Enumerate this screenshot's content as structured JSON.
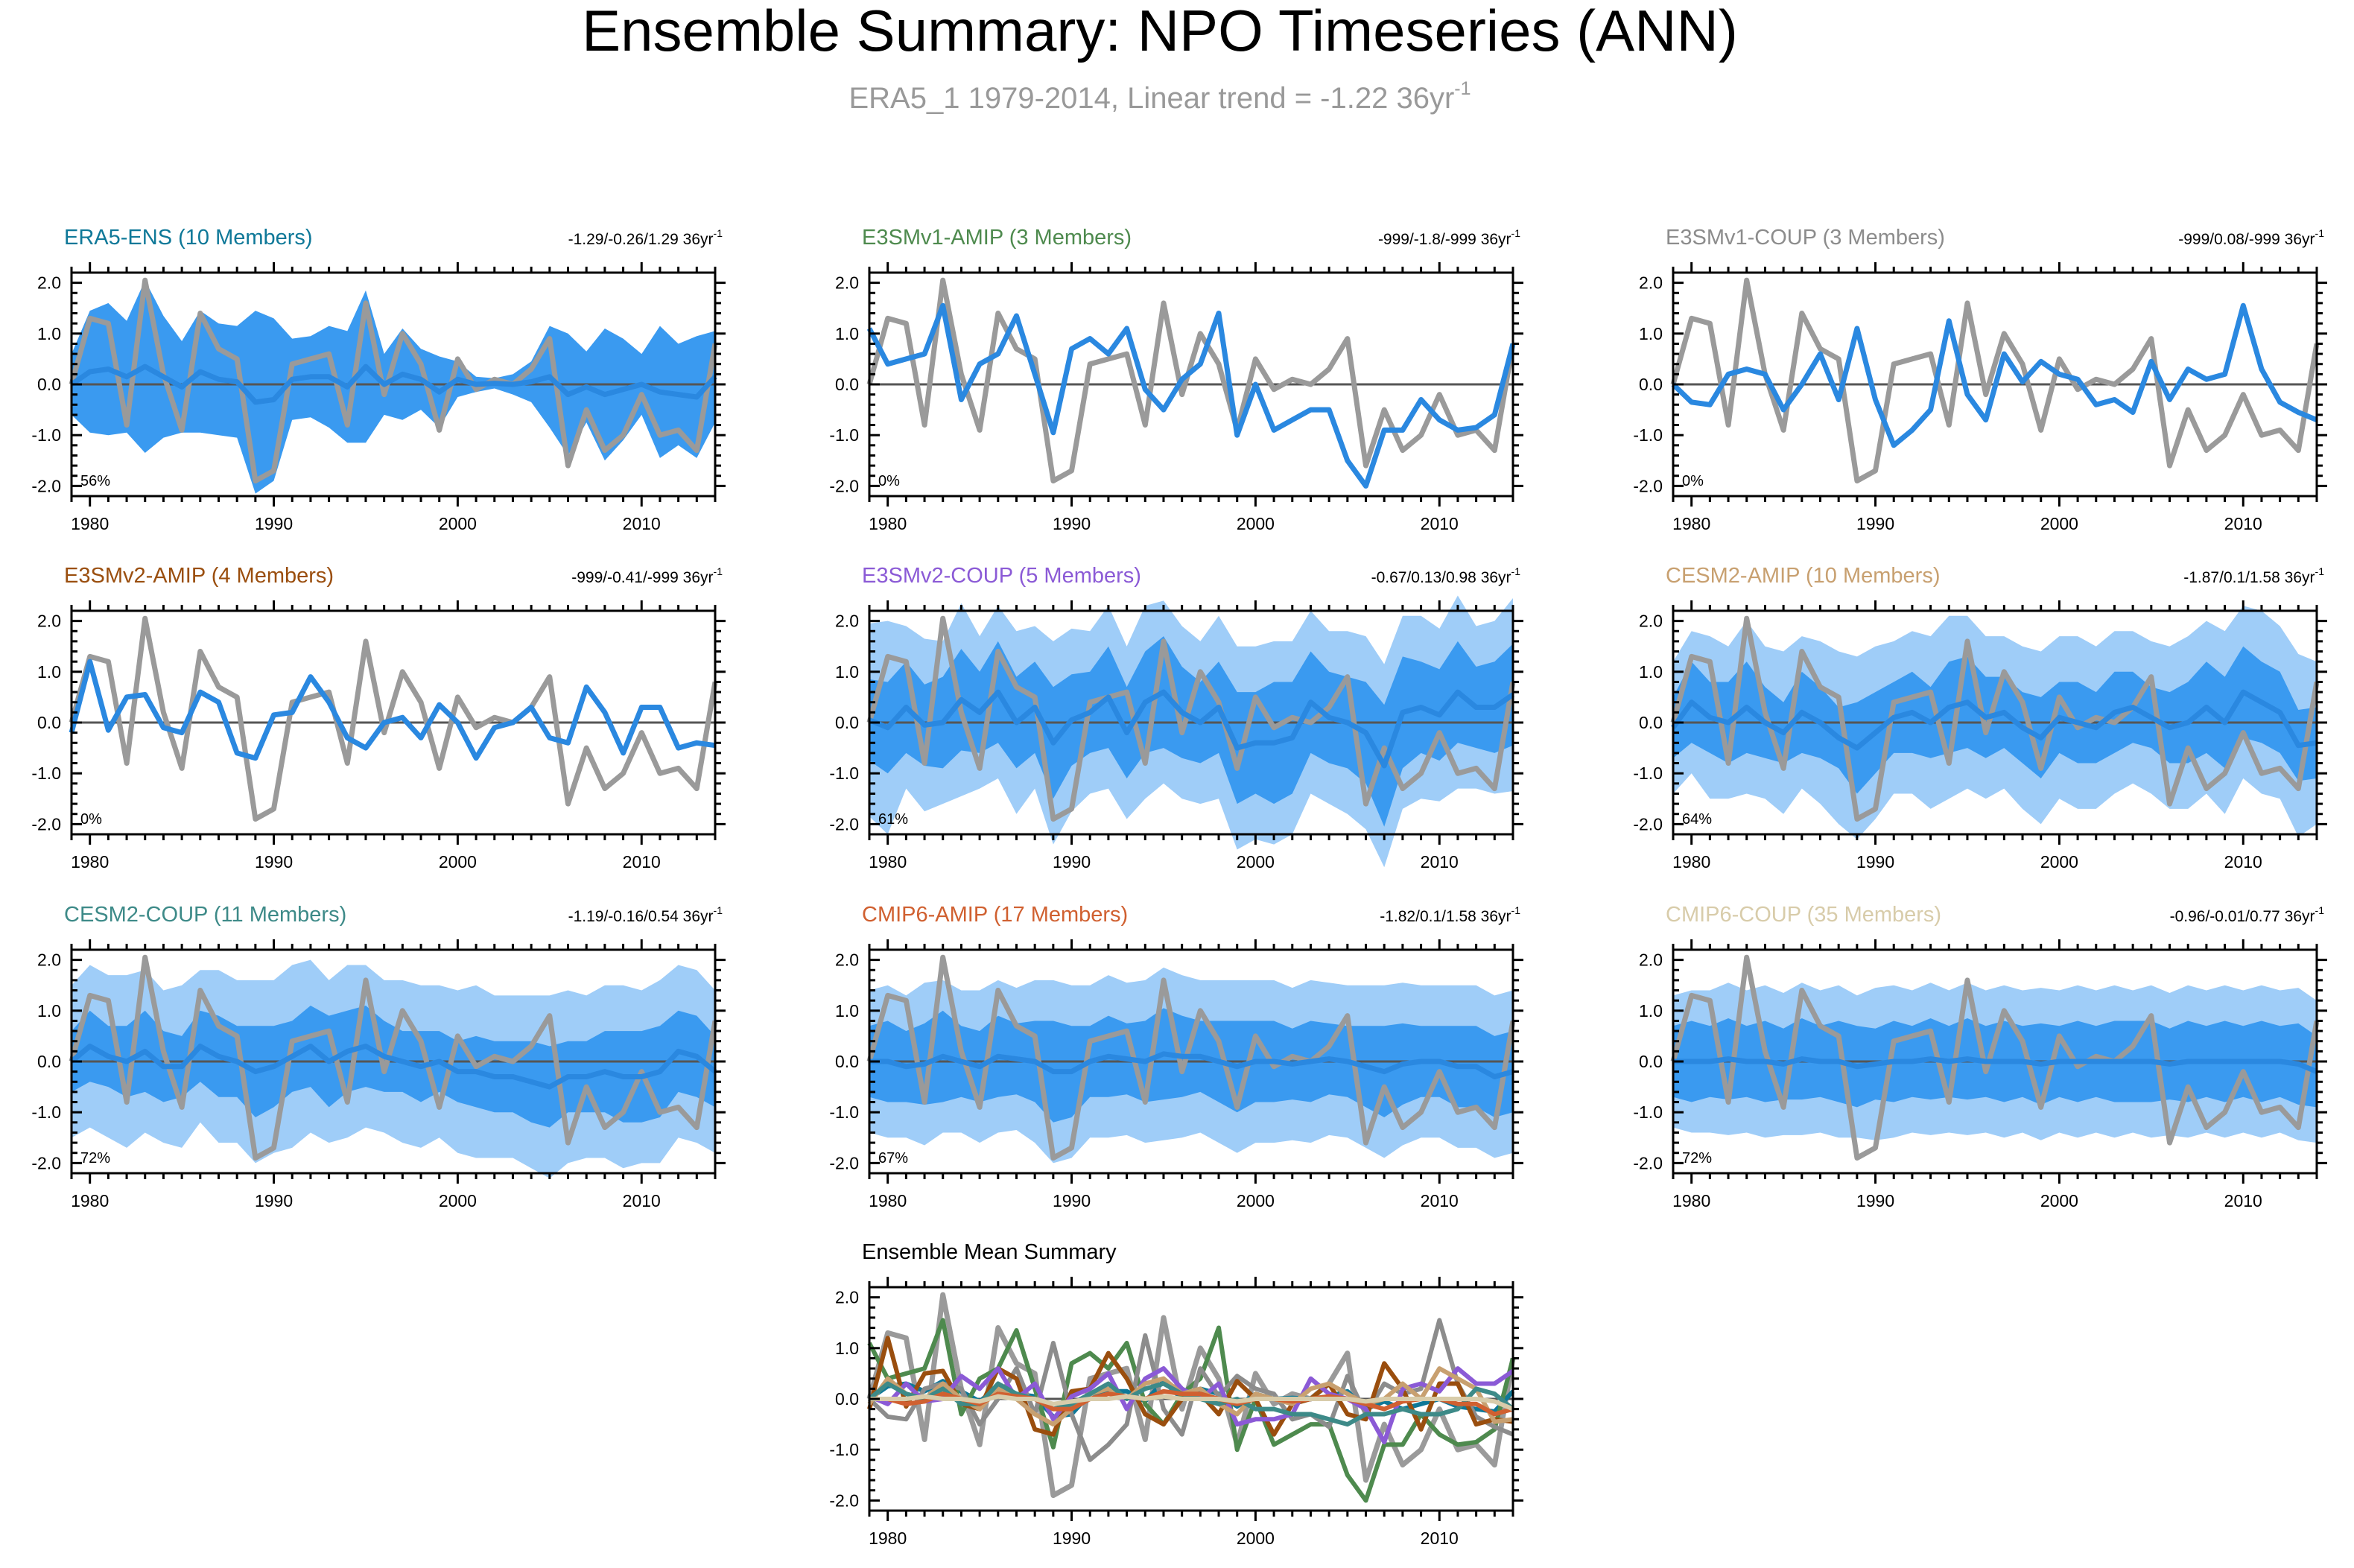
{
  "figure": {
    "title": "Ensemble Summary: NPO Timeseries (ANN)",
    "subtitle_main": "ERA5_1 1979-2014, Linear trend = -1.22 36yr",
    "subtitle_sup": "-1"
  },
  "colors": {
    "obs": "#9a9a9a",
    "mean": "#2a88e0",
    "band_inner": "#3a9af0",
    "band_outer": "#9fcdf8",
    "zero": "#555555"
  },
  "chart_data": {
    "type": "line",
    "x_start": 1979,
    "x_end": 2014,
    "xticks": [
      1980,
      1990,
      2000,
      2010
    ],
    "ylim": [
      -2.2,
      2.2
    ],
    "yticks": [
      "2.0",
      "1.0",
      "0.0",
      "-1.0",
      "-2.0"
    ],
    "ytick_values": [
      2.0,
      1.0,
      0.0,
      -1.0,
      -2.0
    ],
    "observed": {
      "name": "ERA5_1",
      "values": [
        0.0,
        1.3,
        1.2,
        -0.8,
        2.05,
        0.2,
        -0.9,
        1.4,
        0.7,
        0.5,
        -1.9,
        -1.7,
        0.4,
        0.5,
        0.6,
        -0.8,
        1.6,
        -0.2,
        1.0,
        0.4,
        -0.9,
        0.5,
        -0.1,
        0.1,
        0.0,
        0.3,
        0.9,
        -1.6,
        -0.5,
        -1.3,
        -1.0,
        -0.2,
        -1.0,
        -0.9,
        -1.3,
        0.8
      ]
    },
    "panels": [
      {
        "title": "ERA5-ENS (10 Members)",
        "color": "#0e7898",
        "stats": "-1.29/-0.26/1.29 36yr",
        "pct": "56%",
        "band": "single",
        "mean": [
          0.0,
          0.25,
          0.3,
          0.15,
          0.35,
          0.15,
          -0.05,
          0.25,
          0.1,
          0.05,
          -0.35,
          -0.3,
          0.1,
          0.15,
          0.15,
          -0.05,
          0.35,
          0.0,
          0.2,
          0.1,
          -0.15,
          0.1,
          0.0,
          0.02,
          0.0,
          0.05,
          0.15,
          -0.2,
          -0.05,
          -0.2,
          -0.1,
          0.0,
          -0.15,
          -0.2,
          -0.25,
          0.15
        ],
        "spread": [
          0.6,
          1.2,
          1.3,
          1.1,
          1.7,
          1.2,
          0.9,
          1.2,
          1.1,
          1.1,
          1.8,
          1.6,
          0.8,
          0.8,
          1.0,
          1.1,
          1.5,
          0.6,
          0.9,
          0.6,
          0.7,
          0.35,
          0.15,
          0.1,
          0.2,
          0.4,
          1.0,
          1.2,
          0.7,
          1.3,
          1.0,
          0.6,
          1.3,
          1.0,
          1.2,
          0.9
        ],
        "spread_outer": null
      },
      {
        "title": "E3SMv1-AMIP (3 Members)",
        "color": "#4e8a4e",
        "stats": "-999/-1.8/-999 36yr",
        "pct": "0%",
        "band": "none",
        "mean": [
          1.1,
          0.4,
          0.5,
          0.6,
          1.55,
          -0.3,
          0.4,
          0.6,
          1.35,
          0.2,
          -0.95,
          0.7,
          0.9,
          0.6,
          1.1,
          -0.1,
          -0.5,
          0.1,
          0.4,
          1.4,
          -1.0,
          0.0,
          -0.9,
          -0.7,
          -0.5,
          -0.5,
          -1.5,
          -2.0,
          -0.9,
          -0.9,
          -0.3,
          -0.7,
          -0.9,
          -0.85,
          -0.6,
          0.8
        ],
        "spread": null,
        "spread_outer": null
      },
      {
        "title": "E3SMv1-COUP (3 Members)",
        "color": "#8c8c8c",
        "stats": "-999/0.08/-999 36yr",
        "pct": "0%",
        "band": "none",
        "mean": [
          0.0,
          -0.35,
          -0.4,
          0.2,
          0.3,
          0.2,
          -0.5,
          0.0,
          0.6,
          -0.3,
          1.1,
          -0.3,
          -1.2,
          -0.9,
          -0.5,
          1.25,
          -0.2,
          -0.7,
          0.6,
          0.05,
          0.45,
          0.2,
          0.1,
          -0.4,
          -0.3,
          -0.55,
          0.45,
          -0.3,
          0.3,
          0.1,
          0.2,
          1.55,
          0.3,
          -0.35,
          -0.55,
          -0.7
        ],
        "spread": null,
        "spread_outer": null
      },
      {
        "title": "E3SMv2-AMIP (4 Members)",
        "color": "#9a4e0e",
        "stats": "-999/-0.41/-999 36yr",
        "pct": "0%",
        "band": "none",
        "mean": [
          -0.2,
          1.2,
          -0.15,
          0.5,
          0.55,
          -0.1,
          -0.2,
          0.6,
          0.4,
          -0.6,
          -0.7,
          0.15,
          0.2,
          0.9,
          0.4,
          -0.3,
          -0.5,
          0.0,
          0.1,
          -0.3,
          0.35,
          0.0,
          -0.7,
          -0.1,
          0.0,
          0.3,
          -0.3,
          -0.4,
          0.7,
          0.2,
          -0.6,
          0.3,
          0.3,
          -0.5,
          -0.4,
          -0.45
        ],
        "spread": null,
        "spread_outer": null
      },
      {
        "title": "E3SMv2-COUP (5 Members)",
        "color": "#8b5ad6",
        "stats": "-0.67/0.13/0.98 36yr",
        "pct": "61%",
        "band": "double",
        "mean": [
          0.05,
          -0.1,
          0.3,
          -0.05,
          0.0,
          0.45,
          0.2,
          0.6,
          0.0,
          0.3,
          -0.4,
          0.05,
          0.2,
          0.5,
          -0.2,
          0.4,
          0.6,
          0.2,
          0.0,
          0.3,
          -0.5,
          -0.4,
          -0.4,
          -0.3,
          0.4,
          0.1,
          0.0,
          -0.2,
          -0.85,
          0.2,
          0.3,
          0.15,
          0.6,
          0.3,
          0.3,
          0.55
        ],
        "spread": [
          0.8,
          0.9,
          0.9,
          0.8,
          0.9,
          1.0,
          0.8,
          1.0,
          0.9,
          0.9,
          1.1,
          0.9,
          0.8,
          1.0,
          0.9,
          1.0,
          1.1,
          0.9,
          0.8,
          0.9,
          1.1,
          1.0,
          1.2,
          1.1,
          1.0,
          0.9,
          0.9,
          1.0,
          1.2,
          1.1,
          0.9,
          0.9,
          1.0,
          0.8,
          0.9,
          1.0
        ],
        "spread_outer": [
          1.9,
          2.1,
          1.6,
          1.7,
          1.6,
          1.9,
          1.5,
          1.7,
          1.8,
          1.6,
          2.0,
          1.8,
          1.6,
          1.8,
          1.7,
          1.9,
          1.8,
          1.7,
          1.6,
          1.8,
          2.0,
          1.9,
          2.0,
          1.9,
          1.8,
          1.7,
          1.8,
          1.9,
          2.0,
          1.9,
          1.8,
          1.7,
          1.9,
          1.6,
          1.7,
          1.9
        ]
      },
      {
        "title": "CESM2-AMIP (10 Members)",
        "color": "#c8a070",
        "stats": "-1.87/0.1/1.58 36yr",
        "pct": "64%",
        "band": "double",
        "mean": [
          -0.1,
          0.4,
          0.1,
          0.0,
          0.3,
          0.0,
          -0.2,
          0.2,
          0.0,
          -0.3,
          -0.5,
          -0.2,
          0.1,
          0.2,
          0.0,
          0.3,
          0.4,
          0.1,
          0.2,
          -0.1,
          -0.3,
          0.1,
          0.0,
          -0.1,
          0.2,
          0.3,
          0.1,
          -0.1,
          0.0,
          0.3,
          0.0,
          0.6,
          0.4,
          0.2,
          -0.45,
          -0.4
        ],
        "spread": [
          0.6,
          0.8,
          0.7,
          0.8,
          0.9,
          0.7,
          0.6,
          0.8,
          0.7,
          0.6,
          0.9,
          0.8,
          0.7,
          0.8,
          0.7,
          0.9,
          0.9,
          0.8,
          0.7,
          0.7,
          0.8,
          0.7,
          0.8,
          0.7,
          0.8,
          0.7,
          0.6,
          0.7,
          0.8,
          0.9,
          0.9,
          0.9,
          0.8,
          0.8,
          0.7,
          0.7
        ],
        "spread_outer": [
          1.3,
          1.4,
          1.6,
          1.5,
          1.7,
          1.5,
          1.6,
          1.5,
          1.6,
          1.7,
          1.8,
          1.7,
          1.5,
          1.6,
          1.7,
          1.8,
          1.7,
          1.6,
          1.5,
          1.6,
          1.7,
          1.6,
          1.7,
          1.6,
          1.6,
          1.5,
          1.5,
          1.6,
          1.7,
          1.7,
          1.8,
          1.7,
          1.8,
          1.7,
          1.8,
          1.6
        ]
      },
      {
        "title": "CESM2-COUP (11 Members)",
        "color": "#3d8a88",
        "stats": "-1.19/-0.16/0.54 36yr",
        "pct": "72%",
        "band": "double",
        "mean": [
          0.0,
          0.3,
          0.1,
          0.0,
          0.2,
          -0.1,
          -0.1,
          0.3,
          0.1,
          0.0,
          -0.2,
          -0.1,
          0.1,
          0.3,
          0.0,
          0.2,
          0.3,
          0.1,
          0.0,
          -0.1,
          0.0,
          -0.2,
          -0.2,
          -0.3,
          -0.3,
          -0.4,
          -0.5,
          -0.3,
          -0.3,
          -0.2,
          -0.3,
          -0.3,
          -0.2,
          0.2,
          0.1,
          -0.2
        ],
        "spread": [
          0.6,
          0.7,
          0.6,
          0.7,
          0.8,
          0.7,
          0.6,
          0.7,
          0.8,
          0.7,
          0.9,
          0.8,
          0.7,
          0.8,
          0.9,
          0.8,
          0.8,
          0.7,
          0.6,
          0.7,
          0.6,
          0.6,
          0.7,
          0.7,
          0.7,
          0.8,
          0.8,
          0.7,
          0.7,
          0.8,
          0.9,
          0.9,
          0.9,
          0.8,
          0.8,
          0.7
        ],
        "spread_outer": [
          1.5,
          1.6,
          1.6,
          1.7,
          1.6,
          1.5,
          1.6,
          1.5,
          1.7,
          1.6,
          1.8,
          1.7,
          1.8,
          1.7,
          1.6,
          1.7,
          1.6,
          1.5,
          1.6,
          1.6,
          1.5,
          1.6,
          1.7,
          1.6,
          1.6,
          1.7,
          1.8,
          1.7,
          1.6,
          1.7,
          1.8,
          1.7,
          1.8,
          1.7,
          1.7,
          1.6
        ]
      },
      {
        "title": "CMIP6-AMIP (17 Members)",
        "color": "#d06030",
        "stats": "-1.82/0.1/1.58 36yr",
        "pct": "67%",
        "band": "double",
        "mean": [
          0.0,
          0.0,
          -0.1,
          -0.05,
          0.1,
          0.0,
          -0.1,
          0.1,
          0.05,
          0.0,
          -0.2,
          -0.2,
          0.0,
          0.1,
          0.05,
          0.0,
          0.15,
          0.1,
          0.1,
          0.0,
          -0.1,
          0.0,
          0.0,
          -0.05,
          0.0,
          0.05,
          0.0,
          -0.1,
          -0.2,
          -0.05,
          0.0,
          0.0,
          -0.1,
          -0.1,
          -0.3,
          -0.2
        ],
        "spread": [
          0.7,
          0.8,
          0.7,
          0.8,
          0.9,
          0.7,
          0.7,
          0.8,
          0.7,
          0.8,
          1.0,
          0.9,
          0.7,
          0.8,
          0.7,
          0.8,
          0.9,
          0.8,
          0.7,
          0.8,
          0.9,
          0.8,
          0.8,
          0.7,
          0.8,
          0.7,
          0.7,
          0.8,
          0.9,
          0.8,
          0.7,
          0.7,
          0.8,
          0.8,
          0.8,
          0.8
        ],
        "spread_outer": [
          1.4,
          1.5,
          1.4,
          1.6,
          1.5,
          1.4,
          1.5,
          1.5,
          1.4,
          1.6,
          1.8,
          1.7,
          1.5,
          1.6,
          1.5,
          1.6,
          1.7,
          1.6,
          1.5,
          1.6,
          1.7,
          1.6,
          1.6,
          1.5,
          1.6,
          1.5,
          1.5,
          1.6,
          1.7,
          1.6,
          1.5,
          1.5,
          1.6,
          1.6,
          1.6,
          1.6
        ]
      },
      {
        "title": "CMIP6-COUP (35 Members)",
        "color": "#d8ccaa",
        "stats": "-0.96/-0.01/0.77 36yr",
        "pct": "72%",
        "band": "double",
        "mean": [
          0.0,
          0.0,
          0.0,
          0.05,
          0.0,
          0.0,
          -0.05,
          0.05,
          0.0,
          0.0,
          -0.1,
          -0.05,
          0.0,
          0.0,
          0.05,
          0.0,
          0.05,
          0.0,
          0.0,
          0.0,
          -0.05,
          0.0,
          0.0,
          0.0,
          0.0,
          0.0,
          0.0,
          -0.05,
          0.0,
          0.0,
          0.0,
          0.0,
          0.0,
          0.0,
          -0.05,
          -0.2
        ],
        "spread": [
          0.7,
          0.8,
          0.7,
          0.8,
          0.7,
          0.8,
          0.7,
          0.8,
          0.7,
          0.8,
          0.8,
          0.7,
          0.8,
          0.7,
          0.8,
          0.7,
          0.8,
          0.7,
          0.8,
          0.7,
          0.8,
          0.7,
          0.8,
          0.7,
          0.8,
          0.8,
          0.8,
          0.7,
          0.8,
          0.7,
          0.8,
          0.7,
          0.8,
          0.7,
          0.8,
          0.7
        ],
        "spread_outer": [
          1.3,
          1.4,
          1.4,
          1.5,
          1.4,
          1.5,
          1.4,
          1.5,
          1.4,
          1.5,
          1.4,
          1.5,
          1.5,
          1.4,
          1.5,
          1.4,
          1.5,
          1.4,
          1.5,
          1.4,
          1.5,
          1.4,
          1.5,
          1.4,
          1.5,
          1.4,
          1.5,
          1.4,
          1.5,
          1.4,
          1.5,
          1.4,
          1.5,
          1.4,
          1.5,
          1.4
        ]
      }
    ],
    "summary_title": "Ensemble Mean Summary"
  }
}
